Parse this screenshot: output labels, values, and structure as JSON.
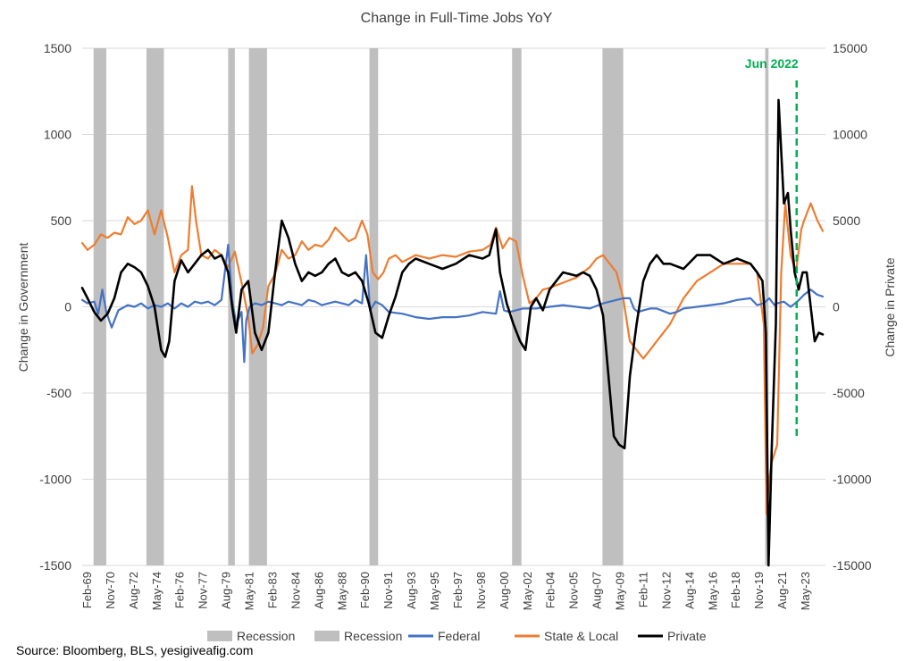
{
  "chart_data": {
    "type": "line",
    "title": "Change in Full-Time Jobs YoY",
    "ylabel_left": "Change in Government",
    "ylabel_right": "Change in Private",
    "ylim_left": [
      -1500,
      1500
    ],
    "ylim_right": [
      -15000,
      15000
    ],
    "yticks_left": [
      "1500",
      "1000",
      "500",
      "0",
      "-500",
      "-1000",
      "-1500"
    ],
    "yticks_right": [
      "15000",
      "10000",
      "5000",
      "0",
      "-5000",
      "-10000",
      "-15000"
    ],
    "x_tick_labels": [
      "Feb-69",
      "Nov-70",
      "Aug-72",
      "May-74",
      "Feb-76",
      "Nov-77",
      "Aug-79",
      "May-81",
      "Feb-83",
      "Nov-84",
      "Aug-86",
      "May-88",
      "Feb-90",
      "Nov-91",
      "Aug-93",
      "May-95",
      "Feb-97",
      "Nov-98",
      "Aug-00",
      "May-02",
      "Feb-04",
      "Nov-05",
      "Aug-07",
      "May-09",
      "Feb-11",
      "Nov-12",
      "Aug-14",
      "May-16",
      "Feb-18",
      "Nov-19",
      "Aug-21",
      "May-23"
    ],
    "grid": true,
    "legend_position": "bottom",
    "source": "Source: Bloomberg, BLS, yesigiveafig.com",
    "annotation": {
      "label": "Jun 2022",
      "x": 2022.45,
      "color": "#00B050"
    },
    "recessions": [
      [
        1969.95,
        1970.9
      ],
      [
        1973.9,
        1975.2
      ],
      [
        1980.0,
        1980.5
      ],
      [
        1981.55,
        1982.9
      ],
      [
        1990.55,
        1991.2
      ],
      [
        2001.2,
        2001.9
      ],
      [
        2007.95,
        2009.5
      ],
      [
        2020.1,
        2020.35
      ]
    ],
    "series": [
      {
        "name": "Recession",
        "color": "#BFBFBF"
      },
      {
        "name": "Recession",
        "color": "#BFBFBF"
      },
      {
        "name": "Federal",
        "axis": "left",
        "color": "#4472C4",
        "x": [
          1969.1,
          1969.5,
          1970.0,
          1970.3,
          1970.6,
          1970.9,
          1971.3,
          1971.8,
          1972.5,
          1973.0,
          1973.5,
          1974.0,
          1974.5,
          1975.0,
          1975.5,
          1976.0,
          1976.5,
          1977.0,
          1977.5,
          1978.0,
          1978.5,
          1979.0,
          1979.5,
          1980.0,
          1980.3,
          1980.6,
          1981.0,
          1981.2,
          1981.35,
          1981.6,
          1982.0,
          1982.5,
          1983.0,
          1983.5,
          1984.0,
          1984.5,
          1985.0,
          1985.5,
          1986.0,
          1986.5,
          1987.0,
          1987.5,
          1988.0,
          1988.5,
          1989.0,
          1989.5,
          1990.0,
          1990.3,
          1990.6,
          1991.0,
          1991.5,
          1992.0,
          1993.0,
          1994.0,
          1995.0,
          1996.0,
          1997.0,
          1998.0,
          1999.0,
          2000.0,
          2000.3,
          2000.6,
          2001.0,
          2002.0,
          2003.0,
          2004.0,
          2005.0,
          2006.0,
          2007.0,
          2008.0,
          2009.0,
          2009.5,
          2010.0,
          2010.3,
          2010.6,
          2011.0,
          2011.5,
          2012.0,
          2013.0,
          2013.5,
          2014.0,
          2015.0,
          2016.0,
          2017.0,
          2018.0,
          2019.0,
          2019.5,
          2020.0,
          2020.4,
          2020.8,
          2021.0,
          2021.5,
          2022.0,
          2022.5,
          2023.0,
          2023.5,
          2024.0,
          2024.4
        ],
        "values": [
          40,
          20,
          30,
          -40,
          100,
          -30,
          -120,
          -20,
          10,
          0,
          20,
          -10,
          10,
          0,
          20,
          -10,
          20,
          0,
          30,
          20,
          30,
          10,
          40,
          360,
          40,
          -100,
          -30,
          -320,
          -80,
          0,
          20,
          10,
          30,
          20,
          10,
          30,
          20,
          10,
          40,
          30,
          10,
          20,
          30,
          20,
          10,
          40,
          20,
          300,
          -20,
          30,
          10,
          -30,
          -40,
          -60,
          -70,
          -60,
          -60,
          -50,
          -30,
          -40,
          90,
          -20,
          -30,
          -10,
          -10,
          0,
          10,
          0,
          -10,
          20,
          40,
          50,
          50,
          -10,
          -30,
          -20,
          -10,
          -10,
          -40,
          -30,
          -10,
          0,
          10,
          20,
          40,
          50,
          10,
          20,
          50,
          10,
          20,
          30,
          0,
          30,
          70,
          100,
          70,
          60
        ]
      },
      {
        "name": "State & Local",
        "axis": "left",
        "color": "#ED7D31",
        "x": [
          1969.1,
          1969.5,
          1970.0,
          1970.5,
          1971.0,
          1971.5,
          1972.0,
          1972.5,
          1973.0,
          1973.5,
          1974.0,
          1974.5,
          1975.0,
          1975.5,
          1976.0,
          1976.5,
          1977.0,
          1977.3,
          1977.6,
          1978.0,
          1978.5,
          1979.0,
          1979.5,
          1980.0,
          1980.5,
          1981.0,
          1981.5,
          1981.8,
          1982.2,
          1982.6,
          1983.0,
          1983.5,
          1984.0,
          1984.5,
          1985.0,
          1985.5,
          1986.0,
          1986.5,
          1987.0,
          1987.5,
          1988.0,
          1988.5,
          1989.0,
          1989.5,
          1990.0,
          1990.4,
          1990.8,
          1991.2,
          1991.6,
          1992.0,
          1992.5,
          1993.0,
          1994.0,
          1995.0,
          1996.0,
          1997.0,
          1998.0,
          1999.0,
          1999.6,
          2000.0,
          2000.5,
          2001.0,
          2001.5,
          2002.0,
          2002.5,
          2003.0,
          2003.5,
          2004.0,
          2005.0,
          2006.0,
          2006.5,
          2007.0,
          2007.5,
          2008.0,
          2008.5,
          2009.0,
          2009.5,
          2010.0,
          2010.5,
          2011.0,
          2011.5,
          2012.0,
          2013.0,
          2014.0,
          2015.0,
          2016.0,
          2017.0,
          2018.0,
          2019.0,
          2019.5,
          2020.0,
          2020.2,
          2020.4,
          2020.6,
          2021.0,
          2021.3,
          2021.6,
          2022.0,
          2022.4,
          2022.8,
          2023.0,
          2023.5,
          2024.0,
          2024.4
        ],
        "values": [
          370,
          330,
          360,
          420,
          400,
          430,
          420,
          520,
          480,
          500,
          560,
          420,
          560,
          400,
          200,
          300,
          330,
          700,
          500,
          300,
          280,
          330,
          300,
          230,
          320,
          140,
          -60,
          -270,
          -220,
          -120,
          120,
          190,
          330,
          280,
          300,
          380,
          330,
          360,
          350,
          390,
          460,
          420,
          380,
          400,
          500,
          420,
          200,
          160,
          200,
          280,
          300,
          260,
          300,
          280,
          300,
          290,
          320,
          330,
          360,
          460,
          340,
          400,
          380,
          180,
          20,
          50,
          100,
          110,
          140,
          170,
          200,
          230,
          280,
          300,
          250,
          200,
          50,
          -200,
          -250,
          -300,
          -250,
          -200,
          -100,
          50,
          150,
          200,
          250,
          250,
          250,
          200,
          -100,
          -1200,
          -1000,
          -900,
          -800,
          200,
          600,
          300,
          200,
          450,
          500,
          600,
          500,
          440
        ]
      },
      {
        "name": "Private",
        "axis": "right",
        "color": "#000000",
        "x": [
          1969.1,
          1969.5,
          1970.0,
          1970.5,
          1971.0,
          1971.5,
          1972.0,
          1972.5,
          1973.0,
          1973.5,
          1974.0,
          1974.5,
          1975.0,
          1975.3,
          1975.6,
          1976.0,
          1976.5,
          1977.0,
          1977.5,
          1978.0,
          1978.5,
          1979.0,
          1979.5,
          1980.0,
          1980.3,
          1980.6,
          1981.0,
          1981.5,
          1982.0,
          1982.5,
          1983.0,
          1983.5,
          1984.0,
          1984.5,
          1985.0,
          1985.5,
          1986.0,
          1986.5,
          1987.0,
          1987.5,
          1988.0,
          1988.5,
          1989.0,
          1989.5,
          1990.0,
          1990.5,
          1991.0,
          1991.5,
          1992.0,
          1992.5,
          1993.0,
          1993.5,
          1994.0,
          1995.0,
          1996.0,
          1997.0,
          1998.0,
          1999.0,
          1999.5,
          2000.0,
          2000.3,
          2000.8,
          2001.3,
          2001.8,
          2002.2,
          2002.6,
          2003.0,
          2003.5,
          2004.0,
          2005.0,
          2006.0,
          2006.5,
          2007.0,
          2007.5,
          2008.0,
          2008.4,
          2008.8,
          2009.2,
          2009.6,
          2010.0,
          2010.5,
          2011.0,
          2011.5,
          2012.0,
          2012.5,
          2013.0,
          2014.0,
          2015.0,
          2016.0,
          2017.0,
          2018.0,
          2019.0,
          2019.5,
          2019.9,
          2020.15,
          2020.35,
          2020.6,
          2020.9,
          2021.1,
          2021.3,
          2021.5,
          2021.8,
          2022.0,
          2022.3,
          2022.6,
          2022.9,
          2023.2,
          2023.5,
          2023.8,
          2024.1,
          2024.4
        ],
        "values": [
          1100,
          500,
          -300,
          -800,
          -400,
          500,
          2000,
          2500,
          2300,
          2000,
          1200,
          0,
          -2500,
          -2900,
          -2000,
          1500,
          2700,
          2000,
          2500,
          3000,
          3300,
          2800,
          3000,
          2000,
          0,
          -1500,
          1000,
          1500,
          -1500,
          -2500,
          -1500,
          2000,
          5000,
          4000,
          2500,
          1500,
          2000,
          1800,
          2000,
          2500,
          2800,
          2000,
          1800,
          2000,
          1500,
          200,
          -1500,
          -1800,
          -500,
          600,
          2000,
          2500,
          2800,
          2500,
          2200,
          2500,
          3000,
          2800,
          3000,
          4500,
          2000,
          200,
          -1000,
          -2000,
          -2500,
          0,
          500,
          -200,
          1000,
          2000,
          1800,
          2000,
          1800,
          1000,
          -500,
          -4000,
          -7500,
          -8000,
          -8200,
          -4000,
          -1000,
          1500,
          2500,
          3000,
          2500,
          2500,
          2200,
          3000,
          3000,
          2500,
          2800,
          2500,
          2000,
          1500,
          -1500,
          -15000,
          -8000,
          -1000,
          12000,
          9000,
          6000,
          6600,
          4500,
          2000,
          1000,
          2000,
          2000,
          0,
          -2000,
          -1500,
          -1600
        ]
      }
    ]
  }
}
